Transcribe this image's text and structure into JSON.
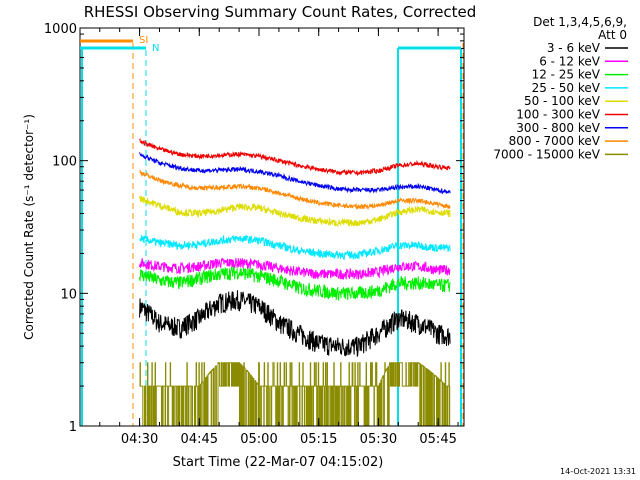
{
  "chart_data": {
    "type": "line",
    "title": "RHESSI Observing Summary Count Rates, Corrected",
    "xlabel": "Start Time (22-Mar-07 04:15:02)",
    "ylabel": "Corrected Count Rate (s⁻¹ detector⁻¹)",
    "footer": "14-Oct-2021 13:31",
    "y_scale": "log",
    "ylim": [
      1,
      1000
    ],
    "xlim": [
      "04:15:02",
      "05:51:30"
    ],
    "x_ticks": [
      "04:30",
      "04:45",
      "05:00",
      "05:15",
      "05:30",
      "05:45"
    ],
    "y_ticks": [
      "1",
      "10",
      "100",
      "1000"
    ],
    "legend": {
      "header": "Det 1,3,4,5,6,9,",
      "subheader": "Att 0",
      "placement": "right"
    },
    "markers": [
      {
        "label": "SI",
        "color": "#ff8c00"
      },
      {
        "label": "N",
        "color": "#00e0e8"
      }
    ],
    "series": [
      {
        "name": "3 - 6 keV",
        "color": "#000000",
        "times": [
          "04:30",
          "04:35",
          "04:40",
          "04:45",
          "04:50",
          "04:55",
          "05:00",
          "05:05",
          "05:10",
          "05:15",
          "05:20",
          "05:25",
          "05:30",
          "05:35",
          "05:40",
          "05:45",
          "05:48"
        ],
        "values": [
          8,
          6,
          5.5,
          6.5,
          8.5,
          9,
          8,
          6,
          5,
          4.2,
          4,
          4,
          5,
          6.5,
          6,
          5,
          4.8
        ]
      },
      {
        "name": "6 - 12 keV",
        "color": "#ff00ff",
        "times": [
          "04:30",
          "04:35",
          "04:40",
          "04:45",
          "04:50",
          "04:55",
          "05:00",
          "05:05",
          "05:10",
          "05:15",
          "05:20",
          "05:25",
          "05:30",
          "05:35",
          "05:40",
          "05:45",
          "05:48"
        ],
        "values": [
          17,
          16,
          15.5,
          16,
          17,
          17,
          16.5,
          15.5,
          14.5,
          14,
          14,
          14,
          14.5,
          16,
          16,
          15,
          15
        ]
      },
      {
        "name": "12 - 25 keV",
        "color": "#00ee00",
        "times": [
          "04:30",
          "04:35",
          "04:40",
          "04:45",
          "04:50",
          "04:55",
          "05:00",
          "05:05",
          "05:10",
          "05:15",
          "05:20",
          "05:25",
          "05:30",
          "05:35",
          "05:40",
          "05:45",
          "05:48"
        ],
        "values": [
          14,
          12.5,
          12,
          13,
          14,
          14.5,
          13.5,
          12.5,
          11,
          10.5,
          10,
          10,
          10.5,
          12,
          12,
          11.5,
          11.5
        ]
      },
      {
        "name": "25 - 50 keV",
        "color": "#00e8ff",
        "times": [
          "04:30",
          "04:35",
          "04:40",
          "04:45",
          "04:50",
          "04:55",
          "05:00",
          "05:05",
          "05:10",
          "05:15",
          "05:20",
          "05:25",
          "05:30",
          "05:35",
          "05:40",
          "05:45",
          "05:48"
        ],
        "values": [
          26,
          24,
          23,
          23.5,
          25,
          26,
          25,
          23,
          21,
          20,
          19.5,
          19.5,
          21,
          23,
          23,
          22,
          22
        ]
      },
      {
        "name": "50 - 100 keV",
        "color": "#dddd00",
        "times": [
          "04:30",
          "04:35",
          "04:40",
          "04:45",
          "04:50",
          "04:55",
          "05:00",
          "05:05",
          "05:10",
          "05:15",
          "05:20",
          "05:25",
          "05:30",
          "05:35",
          "05:40",
          "05:45",
          "05:48"
        ],
        "values": [
          52,
          46,
          41,
          40,
          42,
          45,
          44,
          40,
          37,
          35,
          34,
          34,
          36,
          41,
          43,
          41,
          40
        ]
      },
      {
        "name": "100 - 300 keV",
        "color": "#ee0000",
        "times": [
          "04:30",
          "04:35",
          "04:40",
          "04:45",
          "04:50",
          "04:55",
          "05:00",
          "05:05",
          "05:10",
          "05:15",
          "05:20",
          "05:25",
          "05:30",
          "05:35",
          "05:40",
          "05:45",
          "05:48"
        ],
        "values": [
          140,
          122,
          112,
          108,
          110,
          112,
          108,
          100,
          92,
          86,
          82,
          81,
          84,
          92,
          95,
          90,
          88
        ]
      },
      {
        "name": "300 - 800 keV",
        "color": "#0000ee",
        "times": [
          "04:30",
          "04:35",
          "04:40",
          "04:45",
          "04:50",
          "04:55",
          "05:00",
          "05:05",
          "05:10",
          "05:15",
          "05:20",
          "05:25",
          "05:30",
          "05:35",
          "05:40",
          "05:45",
          "05:48"
        ],
        "values": [
          112,
          96,
          88,
          84,
          85,
          86,
          83,
          77,
          70,
          65,
          61,
          60,
          60,
          63,
          64,
          60,
          58
        ]
      },
      {
        "name": "800 - 7000 keV",
        "color": "#ff8800",
        "times": [
          "04:30",
          "04:35",
          "04:40",
          "04:45",
          "04:50",
          "04:55",
          "05:00",
          "05:05",
          "05:10",
          "05:15",
          "05:20",
          "05:25",
          "05:30",
          "05:35",
          "05:40",
          "05:45",
          "05:48"
        ],
        "values": [
          82,
          71,
          65,
          62,
          63,
          64,
          62,
          57,
          52,
          48,
          46,
          45,
          46,
          50,
          50,
          47,
          45
        ]
      },
      {
        "name": "7000 - 15000 keV",
        "color": "#8b8b00",
        "times": [
          "04:30",
          "04:45",
          "04:50",
          "04:55",
          "05:00",
          "05:15",
          "05:30",
          "05:33",
          "05:40",
          "05:47"
        ],
        "values": [
          2,
          2,
          3,
          3,
          2,
          2,
          2,
          3,
          3,
          2
        ]
      }
    ]
  }
}
